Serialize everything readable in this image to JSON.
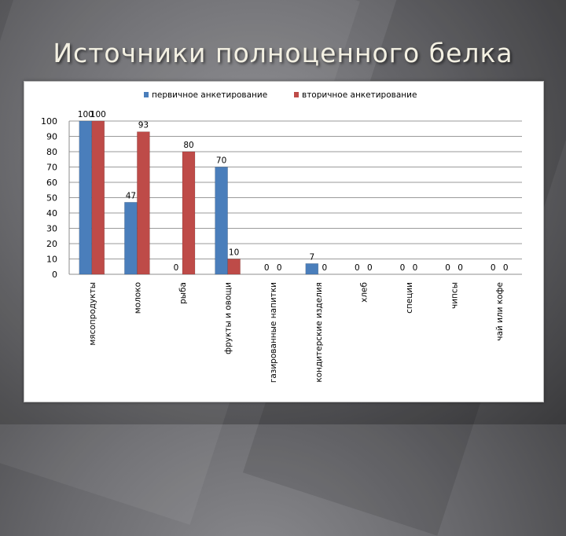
{
  "slide": {
    "title": "Источники полноценного белка"
  },
  "chart_data": {
    "type": "bar",
    "categories": [
      "мясопродукты",
      "молоко",
      "рыба",
      "фрукты и овощи",
      "газированные напитки",
      "кондитерские изделия",
      "хлеб",
      "специи",
      "чипсы",
      "чай или кофе"
    ],
    "series": [
      {
        "name": "первичное анкетирование",
        "color": "#4a7ebb",
        "values": [
          100,
          47,
          0,
          70,
          0,
          7,
          0,
          0,
          0,
          0
        ]
      },
      {
        "name": "вторичное анкетирование",
        "color": "#be4b48",
        "values": [
          100,
          93,
          80,
          10,
          0,
          0,
          0,
          0,
          0,
          0
        ]
      }
    ],
    "yticks": [
      "0",
      "10",
      "20",
      "30",
      "40",
      "50",
      "60",
      "70",
      "80",
      "90",
      "100"
    ],
    "ylim": [
      0,
      100
    ],
    "legend": "top",
    "grid": true
  }
}
